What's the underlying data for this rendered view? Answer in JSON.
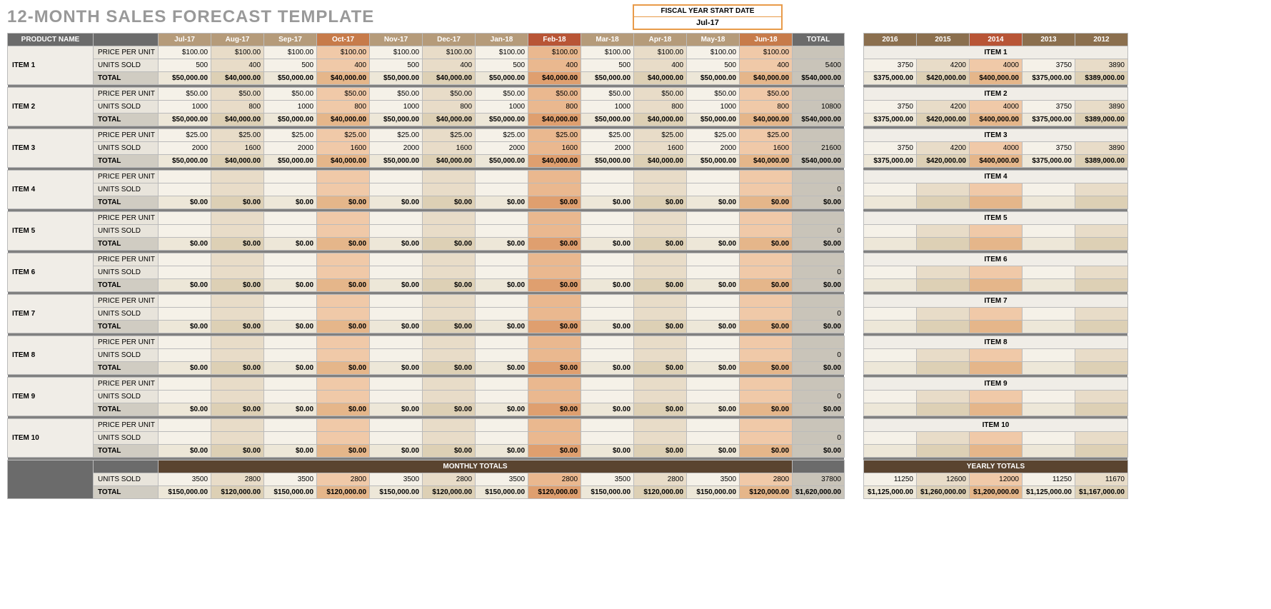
{
  "title": "12-MONTH SALES FORECAST TEMPLATE",
  "fiscal_year": {
    "label": "FISCAL YEAR START DATE",
    "value": "Jul-17"
  },
  "labels": {
    "product_name": "PRODUCT NAME",
    "price_per_unit": "PRICE PER UNIT",
    "units_sold": "UNITS SOLD",
    "total": "TOTAL",
    "monthly_totals": "MONTHLY TOTALS",
    "yearly_totals": "YEARLY TOTALS"
  },
  "months": [
    "Jul-17",
    "Aug-17",
    "Sep-17",
    "Oct-17",
    "Nov-17",
    "Dec-17",
    "Jan-18",
    "Feb-18",
    "Mar-18",
    "Apr-18",
    "May-18",
    "Jun-18"
  ],
  "month_header_colors": [
    "#b59b7a",
    "#b59b7a",
    "#b59b7a",
    "#c77b4a",
    "#b59b7a",
    "#b59b7a",
    "#b59b7a",
    "#b85536",
    "#b59b7a",
    "#b59b7a",
    "#b59b7a",
    "#c77b4a"
  ],
  "month_cell_shade": [
    "a",
    "b",
    "a",
    "d",
    "a",
    "b",
    "a",
    "e",
    "a",
    "b",
    "a",
    "d"
  ],
  "years": [
    "2016",
    "2015",
    "2014",
    "2013",
    "2012"
  ],
  "year_header_colors": [
    "#8b6f4e",
    "#8b6f4e",
    "#b85536",
    "#8b6f4e",
    "#8b6f4e"
  ],
  "year_cell_shade": [
    "a",
    "b",
    "d",
    "a",
    "b"
  ],
  "items": [
    {
      "name": "ITEM 1",
      "price": [
        "$100.00",
        "$100.00",
        "$100.00",
        "$100.00",
        "$100.00",
        "$100.00",
        "$100.00",
        "$100.00",
        "$100.00",
        "$100.00",
        "$100.00",
        "$100.00"
      ],
      "units": [
        "500",
        "400",
        "500",
        "400",
        "500",
        "400",
        "500",
        "400",
        "500",
        "400",
        "500",
        "400"
      ],
      "total": [
        "$50,000.00",
        "$40,000.00",
        "$50,000.00",
        "$40,000.00",
        "$50,000.00",
        "$40,000.00",
        "$50,000.00",
        "$40,000.00",
        "$50,000.00",
        "$40,000.00",
        "$50,000.00",
        "$40,000.00"
      ],
      "sum_units": "5400",
      "sum_total": "$540,000.00",
      "years_units": [
        "3750",
        "4200",
        "4000",
        "3750",
        "3890"
      ],
      "years_total": [
        "$375,000.00",
        "$420,000.00",
        "$400,000.00",
        "$375,000.00",
        "$389,000.00"
      ]
    },
    {
      "name": "ITEM 2",
      "price": [
        "$50.00",
        "$50.00",
        "$50.00",
        "$50.00",
        "$50.00",
        "$50.00",
        "$50.00",
        "$50.00",
        "$50.00",
        "$50.00",
        "$50.00",
        "$50.00"
      ],
      "units": [
        "1000",
        "800",
        "1000",
        "800",
        "1000",
        "800",
        "1000",
        "800",
        "1000",
        "800",
        "1000",
        "800"
      ],
      "total": [
        "$50,000.00",
        "$40,000.00",
        "$50,000.00",
        "$40,000.00",
        "$50,000.00",
        "$40,000.00",
        "$50,000.00",
        "$40,000.00",
        "$50,000.00",
        "$40,000.00",
        "$50,000.00",
        "$40,000.00"
      ],
      "sum_units": "10800",
      "sum_total": "$540,000.00",
      "years_units": [
        "3750",
        "4200",
        "4000",
        "3750",
        "3890"
      ],
      "years_total": [
        "$375,000.00",
        "$420,000.00",
        "$400,000.00",
        "$375,000.00",
        "$389,000.00"
      ]
    },
    {
      "name": "ITEM 3",
      "price": [
        "$25.00",
        "$25.00",
        "$25.00",
        "$25.00",
        "$25.00",
        "$25.00",
        "$25.00",
        "$25.00",
        "$25.00",
        "$25.00",
        "$25.00",
        "$25.00"
      ],
      "units": [
        "2000",
        "1600",
        "2000",
        "1600",
        "2000",
        "1600",
        "2000",
        "1600",
        "2000",
        "1600",
        "2000",
        "1600"
      ],
      "total": [
        "$50,000.00",
        "$40,000.00",
        "$50,000.00",
        "$40,000.00",
        "$50,000.00",
        "$40,000.00",
        "$50,000.00",
        "$40,000.00",
        "$50,000.00",
        "$40,000.00",
        "$50,000.00",
        "$40,000.00"
      ],
      "sum_units": "21600",
      "sum_total": "$540,000.00",
      "years_units": [
        "3750",
        "4200",
        "4000",
        "3750",
        "3890"
      ],
      "years_total": [
        "$375,000.00",
        "$420,000.00",
        "$400,000.00",
        "$375,000.00",
        "$389,000.00"
      ]
    },
    {
      "name": "ITEM 4",
      "price": [
        "",
        "",
        "",
        "",
        "",
        "",
        "",
        "",
        "",
        "",
        "",
        ""
      ],
      "units": [
        "",
        "",
        "",
        "",
        "",
        "",
        "",
        "",
        "",
        "",
        "",
        ""
      ],
      "total": [
        "$0.00",
        "$0.00",
        "$0.00",
        "$0.00",
        "$0.00",
        "$0.00",
        "$0.00",
        "$0.00",
        "$0.00",
        "$0.00",
        "$0.00",
        "$0.00"
      ],
      "sum_units": "0",
      "sum_total": "$0.00",
      "years_units": [
        "",
        "",
        "",
        "",
        ""
      ],
      "years_total": [
        "",
        "",
        "",
        "",
        ""
      ]
    },
    {
      "name": "ITEM 5",
      "price": [
        "",
        "",
        "",
        "",
        "",
        "",
        "",
        "",
        "",
        "",
        "",
        ""
      ],
      "units": [
        "",
        "",
        "",
        "",
        "",
        "",
        "",
        "",
        "",
        "",
        "",
        ""
      ],
      "total": [
        "$0.00",
        "$0.00",
        "$0.00",
        "$0.00",
        "$0.00",
        "$0.00",
        "$0.00",
        "$0.00",
        "$0.00",
        "$0.00",
        "$0.00",
        "$0.00"
      ],
      "sum_units": "0",
      "sum_total": "$0.00",
      "years_units": [
        "",
        "",
        "",
        "",
        ""
      ],
      "years_total": [
        "",
        "",
        "",
        "",
        ""
      ]
    },
    {
      "name": "ITEM 6",
      "price": [
        "",
        "",
        "",
        "",
        "",
        "",
        "",
        "",
        "",
        "",
        "",
        ""
      ],
      "units": [
        "",
        "",
        "",
        "",
        "",
        "",
        "",
        "",
        "",
        "",
        "",
        ""
      ],
      "total": [
        "$0.00",
        "$0.00",
        "$0.00",
        "$0.00",
        "$0.00",
        "$0.00",
        "$0.00",
        "$0.00",
        "$0.00",
        "$0.00",
        "$0.00",
        "$0.00"
      ],
      "sum_units": "0",
      "sum_total": "$0.00",
      "years_units": [
        "",
        "",
        "",
        "",
        ""
      ],
      "years_total": [
        "",
        "",
        "",
        "",
        ""
      ]
    },
    {
      "name": "ITEM 7",
      "price": [
        "",
        "",
        "",
        "",
        "",
        "",
        "",
        "",
        "",
        "",
        "",
        ""
      ],
      "units": [
        "",
        "",
        "",
        "",
        "",
        "",
        "",
        "",
        "",
        "",
        "",
        ""
      ],
      "total": [
        "$0.00",
        "$0.00",
        "$0.00",
        "$0.00",
        "$0.00",
        "$0.00",
        "$0.00",
        "$0.00",
        "$0.00",
        "$0.00",
        "$0.00",
        "$0.00"
      ],
      "sum_units": "0",
      "sum_total": "$0.00",
      "years_units": [
        "",
        "",
        "",
        "",
        ""
      ],
      "years_total": [
        "",
        "",
        "",
        "",
        ""
      ]
    },
    {
      "name": "ITEM 8",
      "price": [
        "",
        "",
        "",
        "",
        "",
        "",
        "",
        "",
        "",
        "",
        "",
        ""
      ],
      "units": [
        "",
        "",
        "",
        "",
        "",
        "",
        "",
        "",
        "",
        "",
        "",
        ""
      ],
      "total": [
        "$0.00",
        "$0.00",
        "$0.00",
        "$0.00",
        "$0.00",
        "$0.00",
        "$0.00",
        "$0.00",
        "$0.00",
        "$0.00",
        "$0.00",
        "$0.00"
      ],
      "sum_units": "0",
      "sum_total": "$0.00",
      "years_units": [
        "",
        "",
        "",
        "",
        ""
      ],
      "years_total": [
        "",
        "",
        "",
        "",
        ""
      ]
    },
    {
      "name": "ITEM 9",
      "price": [
        "",
        "",
        "",
        "",
        "",
        "",
        "",
        "",
        "",
        "",
        "",
        ""
      ],
      "units": [
        "",
        "",
        "",
        "",
        "",
        "",
        "",
        "",
        "",
        "",
        "",
        ""
      ],
      "total": [
        "$0.00",
        "$0.00",
        "$0.00",
        "$0.00",
        "$0.00",
        "$0.00",
        "$0.00",
        "$0.00",
        "$0.00",
        "$0.00",
        "$0.00",
        "$0.00"
      ],
      "sum_units": "0",
      "sum_total": "$0.00",
      "years_units": [
        "",
        "",
        "",
        "",
        ""
      ],
      "years_total": [
        "",
        "",
        "",
        "",
        ""
      ]
    },
    {
      "name": "ITEM 10",
      "price": [
        "",
        "",
        "",
        "",
        "",
        "",
        "",
        "",
        "",
        "",
        "",
        ""
      ],
      "units": [
        "",
        "",
        "",
        "",
        "",
        "",
        "",
        "",
        "",
        "",
        "",
        ""
      ],
      "total": [
        "$0.00",
        "$0.00",
        "$0.00",
        "$0.00",
        "$0.00",
        "$0.00",
        "$0.00",
        "$0.00",
        "$0.00",
        "$0.00",
        "$0.00",
        "$0.00"
      ],
      "sum_units": "0",
      "sum_total": "$0.00",
      "years_units": [
        "",
        "",
        "",
        "",
        ""
      ],
      "years_total": [
        "",
        "",
        "",
        "",
        ""
      ]
    }
  ],
  "monthly_totals": {
    "units": [
      "3500",
      "2800",
      "3500",
      "2800",
      "3500",
      "2800",
      "3500",
      "2800",
      "3500",
      "2800",
      "3500",
      "2800"
    ],
    "total": [
      "$150,000.00",
      "$120,000.00",
      "$150,000.00",
      "$120,000.00",
      "$150,000.00",
      "$120,000.00",
      "$150,000.00",
      "$120,000.00",
      "$150,000.00",
      "$120,000.00",
      "$150,000.00",
      "$120,000.00"
    ],
    "sum_units": "37800",
    "sum_total": "$1,620,000.00"
  },
  "yearly_totals": {
    "units": [
      "11250",
      "12600",
      "12000",
      "11250",
      "11670"
    ],
    "total": [
      "$1,125,000.00",
      "$1,260,000.00",
      "$1,200,000.00",
      "$1,125,000.00",
      "$1,167,000.00"
    ]
  },
  "col_widths": {
    "name": 120,
    "label": 90,
    "month": 74,
    "total": 66,
    "year": 74
  }
}
